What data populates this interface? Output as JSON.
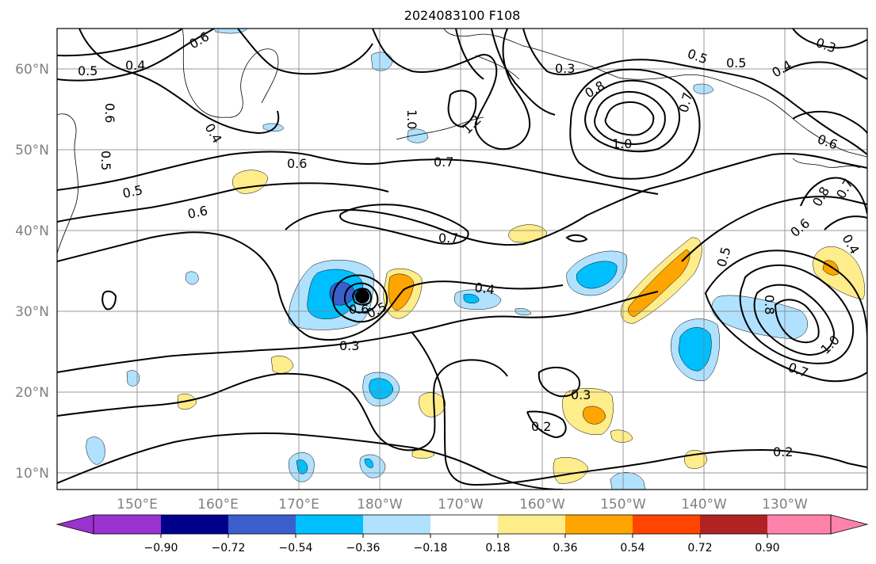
{
  "title": "2024083100 F108",
  "map": {
    "lat_labels": [
      "60°N",
      "50°N",
      "40°N",
      "30°N",
      "20°N",
      "10°N"
    ],
    "lon_labels": [
      "150°E",
      "160°E",
      "170°E",
      "180°W",
      "170°W",
      "160°W",
      "150°W",
      "140°W",
      "130°W"
    ],
    "contour_labels": [
      "0.6",
      "0.5",
      "0.4",
      "0.6",
      "1.0",
      "1.2",
      "0.3",
      "0.5",
      "0.5",
      "0.4",
      "0.3",
      "0.8",
      "1.0",
      "0.7",
      "0.6",
      "0.7",
      "0.6",
      "0.5",
      "0.7",
      "0.4",
      "0.5",
      "0.6",
      "0.3",
      "0.3",
      "0.2",
      "0.2",
      "0.5",
      "0.8",
      "0.7",
      "1.0",
      "0.6",
      "0.8",
      "0.4",
      "0.7",
      "0.6",
      "0.4",
      "0.5"
    ],
    "storm_marker": "typhoon-center"
  },
  "colorbar": {
    "ticks": [
      "−0.90",
      "−0.72",
      "−0.54",
      "−0.36",
      "−0.18",
      "0.18",
      "0.36",
      "0.54",
      "0.72",
      "0.90"
    ],
    "colors": [
      "#9a32cd",
      "#00008b",
      "#3a5fcd",
      "#00bfff",
      "#b0e2ff",
      "#ffffff",
      "#ffec8b",
      "#ffa500",
      "#ff4500",
      "#b22222",
      "#ff82ab"
    ]
  }
}
